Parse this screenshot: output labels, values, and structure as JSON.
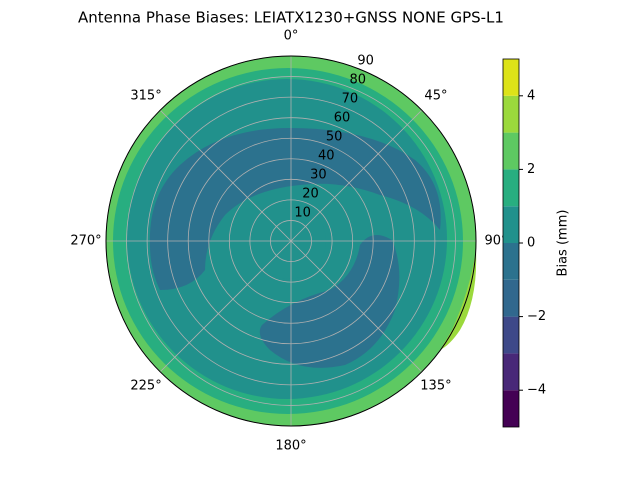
{
  "chart_data": {
    "type": "polar-contour",
    "title": "Antenna Phase Biases: LEIATX1230+GNSS NONE GPS-L1",
    "rticks": [
      10,
      20,
      30,
      40,
      50,
      60,
      70,
      80,
      90
    ],
    "rlim": [
      0,
      90
    ],
    "thetaticks": [
      {
        "value": 0,
        "label": "0°"
      },
      {
        "value": 45,
        "label": "45°"
      },
      {
        "value": 90,
        "label": "90°"
      },
      {
        "value": 135,
        "label": "135°"
      },
      {
        "value": 180,
        "label": "180°"
      },
      {
        "value": 225,
        "label": "225°"
      },
      {
        "value": 270,
        "label": "270°"
      },
      {
        "value": 315,
        "label": "315°"
      }
    ],
    "grid": true,
    "levels": [
      -5,
      -4,
      -3,
      -2,
      -1,
      0,
      1,
      2,
      3,
      4,
      5
    ],
    "colors": [
      "#440154",
      "#482878",
      "#3e4989",
      "#31688e",
      "#2c728e",
      "#21918c",
      "#28ae80",
      "#5ec962",
      "#9bd93c",
      "#dde318"
    ],
    "colorbar_label": "Bias (mm)",
    "clim": [
      -5,
      5
    ],
    "cticks": [
      {
        "value": -4,
        "label": "−4"
      },
      {
        "value": -2,
        "label": "−2"
      },
      0,
      2,
      4
    ]
  }
}
